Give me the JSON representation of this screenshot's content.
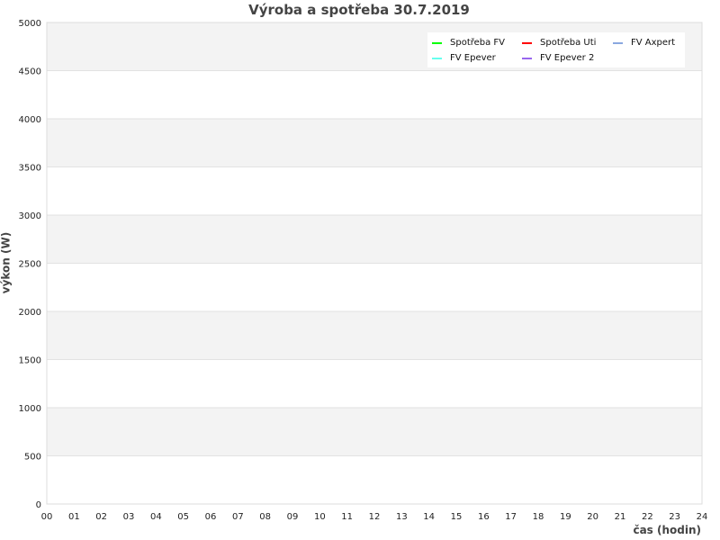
{
  "chart_data": {
    "type": "line",
    "title": "Výroba a spotřeba 30.7.2019",
    "xlabel": "čas (hodin)",
    "ylabel": "výkon (W)",
    "xlim": [
      0,
      24
    ],
    "ylim": [
      0,
      5000
    ],
    "x_ticks": [
      "00",
      "01",
      "02",
      "03",
      "04",
      "05",
      "06",
      "07",
      "08",
      "09",
      "10",
      "11",
      "12",
      "13",
      "14",
      "15",
      "16",
      "17",
      "18",
      "19",
      "20",
      "21",
      "22",
      "23",
      "24"
    ],
    "y_ticks": [
      "0",
      "500",
      "1000",
      "1500",
      "2000",
      "2500",
      "3000",
      "3500",
      "4000",
      "4500",
      "5000"
    ],
    "grid": true,
    "legend_position": "top-right",
    "series": [
      {
        "name": "Spotřeba FV",
        "color": "#00ff00",
        "values": []
      },
      {
        "name": "Spotřeba Uti",
        "color": "#ff0000",
        "values": []
      },
      {
        "name": "FV Axpert",
        "color": "#8aa8e0",
        "values": []
      },
      {
        "name": "FV Epever",
        "color": "#66ffee",
        "values": []
      },
      {
        "name": "FV Epever 2",
        "color": "#9966ee",
        "values": []
      }
    ]
  }
}
